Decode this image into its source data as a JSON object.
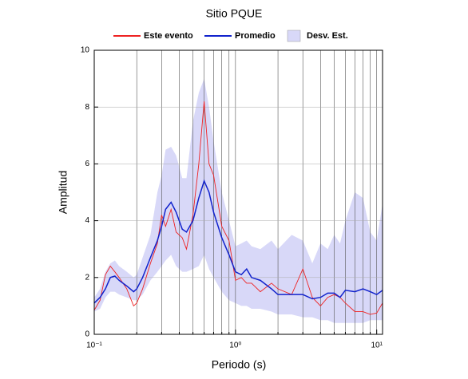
{
  "chart_data": {
    "type": "line",
    "title": "Sitio PQUE",
    "x_label": "Periodo (s)",
    "y_label": "Amplitud",
    "x_scale": "log",
    "grid": true,
    "xlim": [
      0.1,
      11
    ],
    "ylim": [
      0,
      10
    ],
    "xticks": [
      {
        "value": 0.1,
        "label": "10⁻¹"
      },
      {
        "value": 1,
        "label": "10⁰"
      },
      {
        "value": 10,
        "label": "10¹"
      }
    ],
    "xminor": [
      0.2,
      0.3,
      0.4,
      0.5,
      0.6,
      0.7,
      0.8,
      0.9,
      2,
      3,
      4,
      5,
      6,
      7,
      8,
      9
    ],
    "yticks": [
      0,
      2,
      4,
      6,
      8,
      10
    ],
    "x": [
      0.1,
      0.11,
      0.12,
      0.13,
      0.14,
      0.15,
      0.17,
      0.19,
      0.2,
      0.22,
      0.25,
      0.28,
      0.3,
      0.32,
      0.35,
      0.38,
      0.42,
      0.45,
      0.5,
      0.55,
      0.6,
      0.65,
      0.7,
      0.8,
      0.9,
      1.0,
      1.1,
      1.2,
      1.3,
      1.5,
      1.8,
      2.0,
      2.5,
      3.0,
      3.5,
      4.0,
      4.5,
      5.0,
      5.5,
      6.0,
      7.0,
      8.0,
      9.0,
      10,
      11
    ],
    "series": [
      {
        "name": "Este evento",
        "color": "#ee2222",
        "values": [
          0.85,
          1.2,
          2.1,
          2.4,
          2.2,
          2.0,
          1.6,
          1.0,
          1.1,
          1.6,
          2.5,
          3.2,
          4.2,
          3.8,
          4.4,
          3.6,
          3.4,
          3.0,
          4.2,
          6.0,
          8.2,
          6.0,
          5.6,
          3.8,
          3.3,
          1.9,
          2.0,
          1.8,
          1.8,
          1.5,
          1.8,
          1.6,
          1.4,
          2.3,
          1.3,
          1.0,
          1.3,
          1.4,
          1.3,
          1.1,
          0.8,
          0.8,
          0.7,
          0.75,
          1.1
        ]
      },
      {
        "name": "Promedio",
        "color": "#1122cc",
        "values": [
          1.1,
          1.3,
          1.6,
          2.0,
          2.05,
          1.9,
          1.7,
          1.5,
          1.6,
          2.0,
          2.7,
          3.3,
          3.8,
          4.4,
          4.65,
          4.3,
          3.7,
          3.6,
          4.0,
          4.8,
          5.4,
          5.0,
          4.3,
          3.4,
          2.8,
          2.2,
          2.1,
          2.3,
          2.0,
          1.9,
          1.6,
          1.4,
          1.4,
          1.4,
          1.25,
          1.3,
          1.45,
          1.45,
          1.3,
          1.55,
          1.5,
          1.6,
          1.5,
          1.4,
          1.55
        ]
      },
      {
        "name": "Desv. Est.",
        "color": "#d8d8f8",
        "upper": [
          1.3,
          1.6,
          2.2,
          2.5,
          2.6,
          2.4,
          2.2,
          2.0,
          2.1,
          2.7,
          3.5,
          5.0,
          5.6,
          6.5,
          6.6,
          6.3,
          5.5,
          5.5,
          7.5,
          8.5,
          9.0,
          8.0,
          6.8,
          5.0,
          4.0,
          3.1,
          3.2,
          3.3,
          3.1,
          3.0,
          3.3,
          3.0,
          3.5,
          3.3,
          2.5,
          3.2,
          3.0,
          3.5,
          3.2,
          4.0,
          5.0,
          4.8,
          3.6,
          3.3,
          4.6
        ],
        "lower": [
          0.8,
          0.9,
          1.3,
          1.5,
          1.5,
          1.4,
          1.3,
          1.2,
          1.2,
          1.4,
          1.9,
          2.2,
          2.4,
          2.6,
          2.8,
          2.4,
          2.2,
          2.2,
          2.3,
          2.4,
          2.8,
          2.3,
          2.0,
          1.5,
          1.2,
          1.1,
          1.0,
          1.0,
          0.9,
          0.9,
          0.8,
          0.7,
          0.7,
          0.6,
          0.6,
          0.5,
          0.5,
          0.4,
          0.4,
          0.4,
          0.4,
          0.4,
          0.5,
          0.5,
          0.5
        ]
      }
    ]
  }
}
